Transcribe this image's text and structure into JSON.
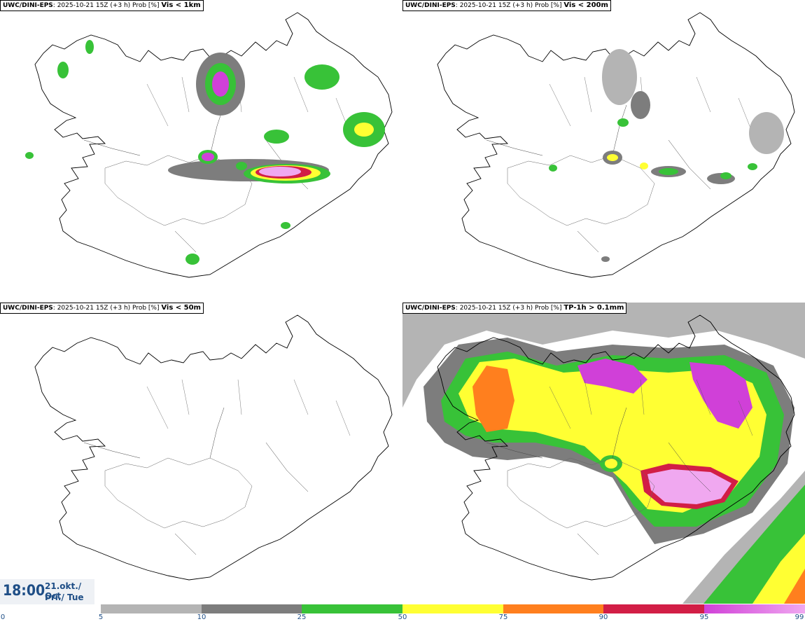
{
  "panels": [
    {
      "source": "UWC/DINI-EPS",
      "info": ": 2025-10-21 15Z (+3 h) Prob [%]",
      "variable": "Vis < 1km"
    },
    {
      "source": "UWC/DINI-EPS",
      "info": ": 2025-10-21 15Z (+3 h) Prob [%]",
      "variable": "Vis < 200m"
    },
    {
      "source": "UWC/DINI-EPS",
      "info": ": 2025-10-21 15Z (+3 h) Prob [%]",
      "variable": "Vis < 50m"
    },
    {
      "source": "UWC/DINI-EPS",
      "info": ": 2025-10-21 15Z (+3 h) Prob [%]",
      "variable": "TP-1h > 0.1mm"
    }
  ],
  "valid_time": {
    "time": "18:00",
    "date": "21.okt./ Oct",
    "day": "Þri./ Tue"
  },
  "legend": {
    "ticks": [
      "0",
      "5",
      "10",
      "25",
      "50",
      "75",
      "90",
      "95",
      "99"
    ],
    "colors": [
      "#b4b4b4",
      "#7d7d7d",
      "#38c238",
      "#ffff33",
      "#ff7f1e",
      "#d21e46",
      "#d040d8",
      "#f0a8f0"
    ]
  }
}
